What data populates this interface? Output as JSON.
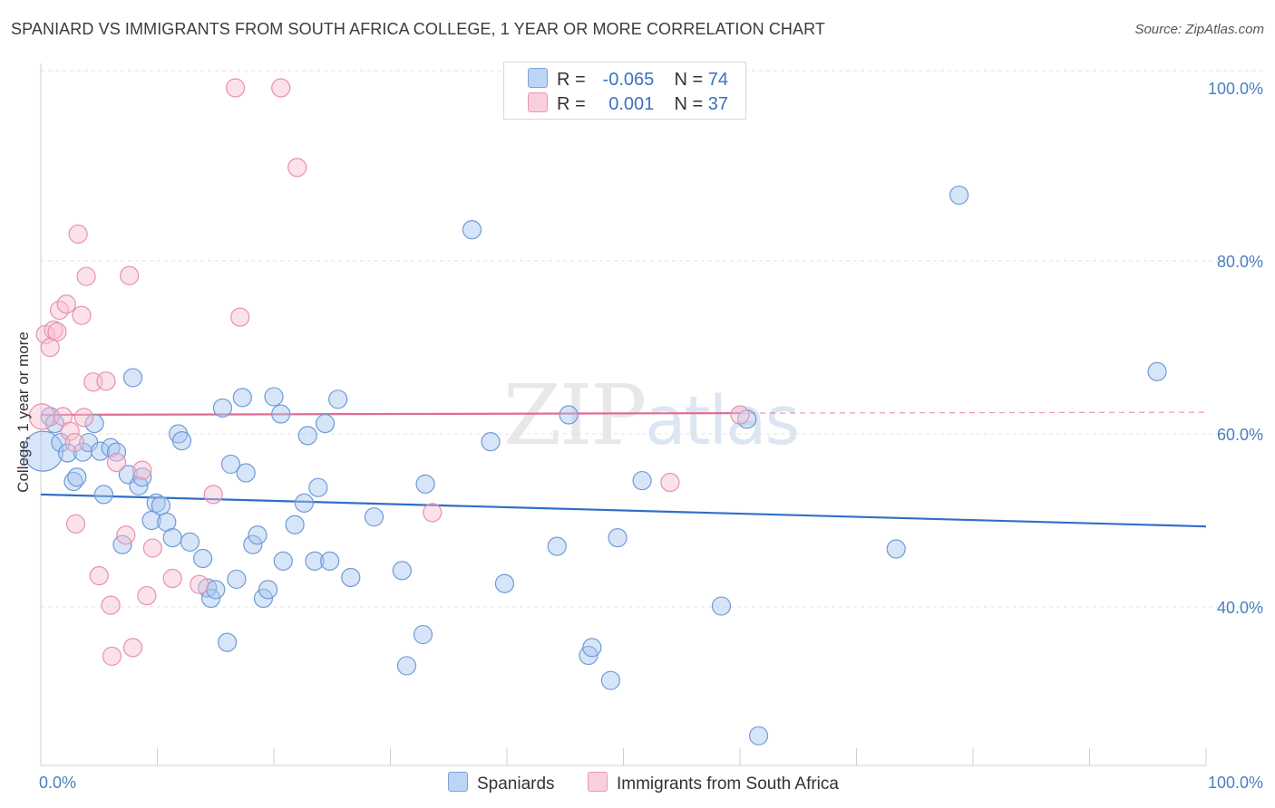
{
  "chart_data": {
    "type": "scatter",
    "title": "SPANIARD VS IMMIGRANTS FROM SOUTH AFRICA COLLEGE, 1 YEAR OR MORE CORRELATION CHART",
    "source": "Source: ZipAtlas.com",
    "ylabel": "College, 1 year or more",
    "xlabel": "",
    "xlim": [
      0,
      100
    ],
    "ylim": [
      20,
      102
    ],
    "y_ticks": [
      {
        "value": 100,
        "label": "100.0%"
      },
      {
        "value": 80,
        "label": "80.0%"
      },
      {
        "value": 60,
        "label": "60.0%"
      },
      {
        "value": 40,
        "label": "40.0%"
      }
    ],
    "x_ticks": [
      {
        "value": 0,
        "label": "0.0%"
      },
      {
        "value": 100,
        "label": "100.0%"
      }
    ],
    "watermark": {
      "zip": "ZIP",
      "atlas": "atlas"
    },
    "legend": {
      "rows": [
        {
          "r_label": "R =",
          "r_value": "-0.065",
          "n_label": "N =",
          "n_value": "74"
        },
        {
          "r_label": "R =",
          "r_value": "0.001",
          "n_label": "N =",
          "n_value": "37"
        }
      ]
    },
    "series": [
      {
        "name": "Spaniards",
        "color": "#a7c6ef",
        "stroke": "#6f9ad6",
        "trend_color": "#2f6fca",
        "trend": {
          "x0": 0,
          "y0": 53.0,
          "x1": 100,
          "y1": 49.3
        },
        "points": [
          [
            0.2,
            58.0,
            22
          ],
          [
            0.8,
            62.0,
            10
          ],
          [
            1.2,
            61.2,
            10
          ],
          [
            1.7,
            59.0,
            10
          ],
          [
            2.3,
            57.8,
            10
          ],
          [
            2.8,
            54.5,
            10
          ],
          [
            3.1,
            55.0,
            10
          ],
          [
            3.6,
            57.9,
            10
          ],
          [
            4.1,
            59.0,
            10
          ],
          [
            4.6,
            61.2,
            10
          ],
          [
            5.1,
            58.0,
            10
          ],
          [
            5.4,
            53.0,
            10
          ],
          [
            6.0,
            58.4,
            10
          ],
          [
            6.5,
            57.9,
            10
          ],
          [
            7.0,
            47.2,
            10
          ],
          [
            7.5,
            55.3,
            10
          ],
          [
            7.9,
            66.5,
            10
          ],
          [
            8.4,
            54.0,
            10
          ],
          [
            8.7,
            55.0,
            10
          ],
          [
            9.5,
            50.0,
            10
          ],
          [
            9.9,
            52.0,
            10
          ],
          [
            10.3,
            51.7,
            10
          ],
          [
            10.8,
            49.8,
            10
          ],
          [
            11.3,
            48.0,
            10
          ],
          [
            11.8,
            60.0,
            10
          ],
          [
            12.1,
            59.2,
            10
          ],
          [
            12.8,
            47.5,
            10
          ],
          [
            13.9,
            45.6,
            10
          ],
          [
            14.3,
            42.2,
            10
          ],
          [
            14.6,
            41.0,
            10
          ],
          [
            15.0,
            42.0,
            10
          ],
          [
            15.6,
            63.0,
            10
          ],
          [
            16.0,
            35.9,
            10
          ],
          [
            16.3,
            56.5,
            10
          ],
          [
            16.8,
            43.2,
            10
          ],
          [
            17.3,
            64.2,
            10
          ],
          [
            17.6,
            55.5,
            10
          ],
          [
            18.2,
            47.2,
            10
          ],
          [
            18.6,
            48.3,
            10
          ],
          [
            19.1,
            41.0,
            10
          ],
          [
            19.5,
            42.0,
            10
          ],
          [
            20.0,
            64.3,
            10
          ],
          [
            20.6,
            62.3,
            10
          ],
          [
            20.8,
            45.3,
            10
          ],
          [
            21.8,
            49.5,
            10
          ],
          [
            22.6,
            52.0,
            10
          ],
          [
            22.9,
            59.8,
            10
          ],
          [
            23.5,
            45.3,
            10
          ],
          [
            23.8,
            53.8,
            10
          ],
          [
            24.4,
            61.2,
            10
          ],
          [
            24.8,
            45.3,
            10
          ],
          [
            25.5,
            64.0,
            10
          ],
          [
            26.6,
            43.4,
            10
          ],
          [
            28.6,
            50.4,
            10
          ],
          [
            31.0,
            44.2,
            10
          ],
          [
            31.4,
            33.2,
            10
          ],
          [
            32.8,
            36.8,
            10
          ],
          [
            33.0,
            54.2,
            10
          ],
          [
            37.0,
            83.6,
            10
          ],
          [
            38.6,
            59.1,
            10
          ],
          [
            39.8,
            42.7,
            10
          ],
          [
            44.3,
            47.0,
            10
          ],
          [
            45.3,
            62.2,
            10
          ],
          [
            47.0,
            34.4,
            10
          ],
          [
            47.3,
            35.3,
            10
          ],
          [
            48.9,
            31.5,
            10
          ],
          [
            49.5,
            48.0,
            10
          ],
          [
            51.6,
            54.6,
            10
          ],
          [
            58.4,
            40.1,
            10
          ],
          [
            61.6,
            25.1,
            10
          ],
          [
            60.6,
            61.7,
            10
          ],
          [
            73.4,
            46.7,
            10
          ],
          [
            78.8,
            87.6,
            10
          ],
          [
            95.8,
            67.2,
            10
          ]
        ]
      },
      {
        "name": "Immigrants from South Africa",
        "color": "#f6bfd1",
        "stroke": "#e890ad",
        "trend_color": "#e06c95",
        "trend": {
          "x0": 0,
          "y0": 62.2,
          "x1": 60,
          "y1": 62.4
        },
        "trend_dashed": {
          "x0": 60,
          "y0": 62.4,
          "x1": 100,
          "y1": 62.5
        },
        "points": [
          [
            0.1,
            62.0,
            14
          ],
          [
            0.4,
            71.5,
            10
          ],
          [
            0.8,
            70.0,
            10
          ],
          [
            1.1,
            72.0,
            10
          ],
          [
            1.4,
            71.8,
            10
          ],
          [
            1.6,
            74.3,
            10
          ],
          [
            1.9,
            62.0,
            10
          ],
          [
            2.2,
            75.0,
            10
          ],
          [
            2.5,
            60.3,
            10
          ],
          [
            2.9,
            59.0,
            10
          ],
          [
            3.0,
            49.6,
            10
          ],
          [
            3.2,
            83.1,
            10
          ],
          [
            3.5,
            73.7,
            10
          ],
          [
            3.7,
            61.9,
            10
          ],
          [
            3.9,
            78.2,
            10
          ],
          [
            4.5,
            66.0,
            10
          ],
          [
            5.0,
            43.6,
            10
          ],
          [
            5.6,
            66.1,
            10
          ],
          [
            6.0,
            40.2,
            10
          ],
          [
            6.1,
            34.3,
            10
          ],
          [
            6.5,
            56.7,
            10
          ],
          [
            7.3,
            48.3,
            10
          ],
          [
            7.6,
            78.3,
            10
          ],
          [
            7.9,
            35.3,
            10
          ],
          [
            8.7,
            55.8,
            10
          ],
          [
            9.1,
            41.3,
            10
          ],
          [
            9.6,
            46.8,
            10
          ],
          [
            11.3,
            43.3,
            10
          ],
          [
            13.6,
            42.6,
            10
          ],
          [
            14.8,
            53.0,
            10
          ],
          [
            16.7,
            100.0,
            10
          ],
          [
            17.1,
            73.5,
            10
          ],
          [
            20.6,
            100.0,
            10
          ],
          [
            22.0,
            90.8,
            10
          ],
          [
            33.6,
            50.9,
            10
          ],
          [
            54.0,
            54.4,
            10
          ],
          [
            60.0,
            62.2,
            10
          ]
        ]
      }
    ]
  }
}
